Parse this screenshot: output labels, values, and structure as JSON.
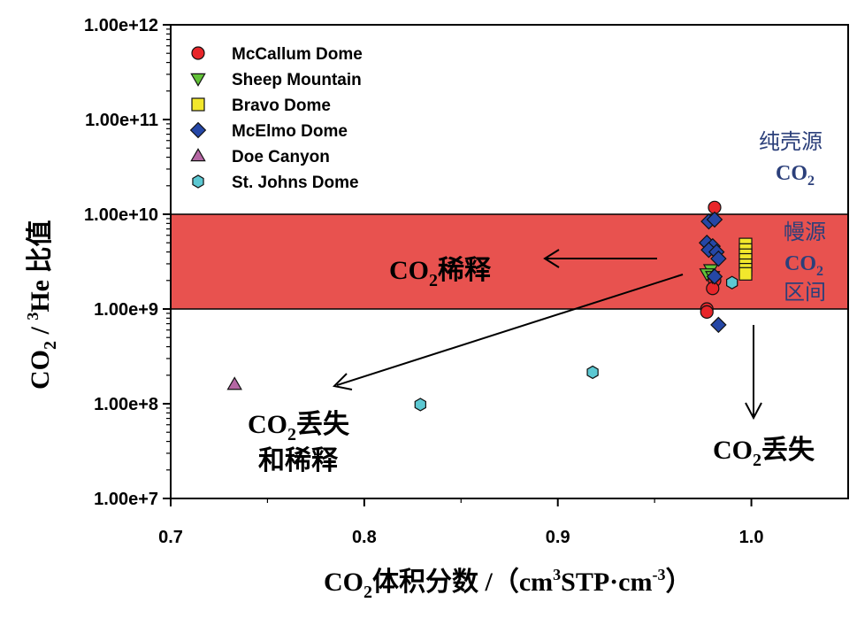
{
  "chart_data": {
    "type": "scatter",
    "x_scale": "linear",
    "y_scale": "log",
    "xlim": [
      0.7,
      1.05
    ],
    "ylim": [
      10000000,
      1000000000000
    ],
    "x_ticks": [
      0.7,
      0.8,
      0.9,
      1.0
    ],
    "x_tick_labels": [
      "0.7",
      "0.8",
      "0.9",
      "1.0"
    ],
    "y_ticks": [
      10000000,
      100000000,
      1000000000,
      10000000000,
      100000000000,
      1000000000000
    ],
    "y_tick_labels": [
      "1.00e+7",
      "1.00e+8",
      "1.00e+9",
      "1.00e+10",
      "1.00e+11",
      "1.00e+12"
    ],
    "xlabel": {
      "main": "CO",
      "sub": "2",
      "rest": "体积分数 /（cm",
      "sup": "3",
      "rest2": "STP·cm",
      "sup2": "-3",
      "end": "）"
    },
    "ylabel": {
      "main": "CO",
      "sub": "2",
      "mid": " / ",
      "sup": "3",
      "rest": "He 比值"
    },
    "legend_position": "top-left",
    "grid": false,
    "band": {
      "y_range": [
        1000000000,
        10000000000
      ],
      "color": "#e8524f"
    },
    "series": [
      {
        "name": "McCallum Dome",
        "marker": "circle",
        "color": "#e8262a",
        "points": [
          [
            0.981,
            11800000000
          ],
          [
            0.981,
            2000000000
          ],
          [
            0.98,
            1650000000
          ],
          [
            0.977,
            1000000000
          ],
          [
            0.977,
            930000000
          ]
        ]
      },
      {
        "name": "Sheep Mountain",
        "marker": "triangle-down",
        "color": "#62c238",
        "points": [
          [
            0.979,
            2600000000
          ],
          [
            0.977,
            2350000000
          ],
          [
            0.98,
            2200000000
          ]
        ]
      },
      {
        "name": "Bravo Dome",
        "marker": "square",
        "color": "#f2e72c",
        "points": [
          [
            0.997,
            4800000000
          ],
          [
            0.997,
            4200000000
          ],
          [
            0.997,
            3700000000
          ],
          [
            0.997,
            3300000000
          ],
          [
            0.997,
            2900000000
          ],
          [
            0.997,
            2600000000
          ],
          [
            0.997,
            2350000000
          ]
        ]
      },
      {
        "name": "McElmo Dome",
        "marker": "diamond",
        "color": "#2547a6",
        "points": [
          [
            0.978,
            8400000000
          ],
          [
            0.981,
            8800000000
          ],
          [
            0.977,
            5000000000
          ],
          [
            0.98,
            4600000000
          ],
          [
            0.978,
            4200000000
          ],
          [
            0.982,
            4000000000
          ],
          [
            0.983,
            3400000000
          ],
          [
            0.981,
            2200000000
          ],
          [
            0.983,
            680000000
          ]
        ]
      },
      {
        "name": "Doe Canyon",
        "marker": "triangle-up",
        "color": "#b566a3",
        "points": [
          [
            0.733,
            160000000
          ]
        ]
      },
      {
        "name": "St. Johns Dome",
        "marker": "hexagon",
        "color": "#5cc8d2",
        "points": [
          [
            0.829,
            98000000
          ],
          [
            0.918,
            215000000
          ],
          [
            0.99,
            1900000000
          ]
        ]
      }
    ],
    "annotations": [
      {
        "id": "dilution",
        "main": "CO",
        "sub": "2",
        "rest": "稀释"
      },
      {
        "id": "loss-dilution",
        "main": "CO",
        "sub": "2",
        "rest": "丢失",
        "line2": "和稀释"
      },
      {
        "id": "loss",
        "main": "CO",
        "sub": "2",
        "rest": "丢失"
      }
    ],
    "regions": [
      {
        "id": "crust",
        "line1": "纯壳源",
        "main": "CO",
        "sub": "2",
        "color": "#2b3f7a"
      },
      {
        "id": "mantle",
        "line1": "幔源",
        "main": "CO",
        "sub": "2",
        "line3": "区间",
        "color": "#2b3f7a"
      }
    ]
  }
}
